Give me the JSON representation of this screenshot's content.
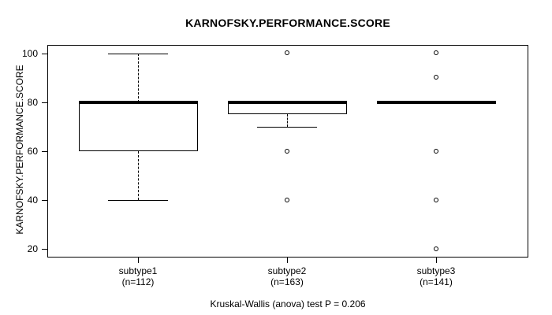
{
  "figure": {
    "title": "KARNOFSKY.PERFORMANCE.SCORE",
    "caption": "Kruskal-Wallis (anova) test P = 0.206"
  },
  "chart_data": {
    "type": "boxplot",
    "title": "KARNOFSKY.PERFORMANCE.SCORE",
    "xlabel": "",
    "ylabel": "KARNOFSKY.PERFORMANCE.SCORE",
    "ylim": [
      16.8,
      103.2
    ],
    "yticks": [
      20,
      40,
      60,
      80,
      100
    ],
    "grid": false,
    "legend": null,
    "caption": "Kruskal-Wallis (anova) test P = 0.206",
    "colors": {
      "line": "#000000",
      "box_fill": "#ffffff",
      "background": "#ffffff"
    },
    "groups": [
      {
        "label": "subtype1",
        "sublabel": "(n=112)",
        "n": 112,
        "median": 80,
        "q1": 60,
        "q3": 80,
        "whisker_low": 40,
        "whisker_high": 100,
        "outliers": []
      },
      {
        "label": "subtype2",
        "sublabel": "(n=163)",
        "n": 163,
        "median": 80,
        "q1": 75,
        "q3": 80,
        "whisker_low": 70,
        "whisker_high": 80,
        "outliers": [
          100,
          60,
          40
        ]
      },
      {
        "label": "subtype3",
        "sublabel": "(n=141)",
        "n": 141,
        "median": 80,
        "q1": 80,
        "q3": 80,
        "whisker_low": 80,
        "whisker_high": 80,
        "outliers": [
          100,
          90,
          60,
          40,
          20
        ]
      }
    ]
  }
}
